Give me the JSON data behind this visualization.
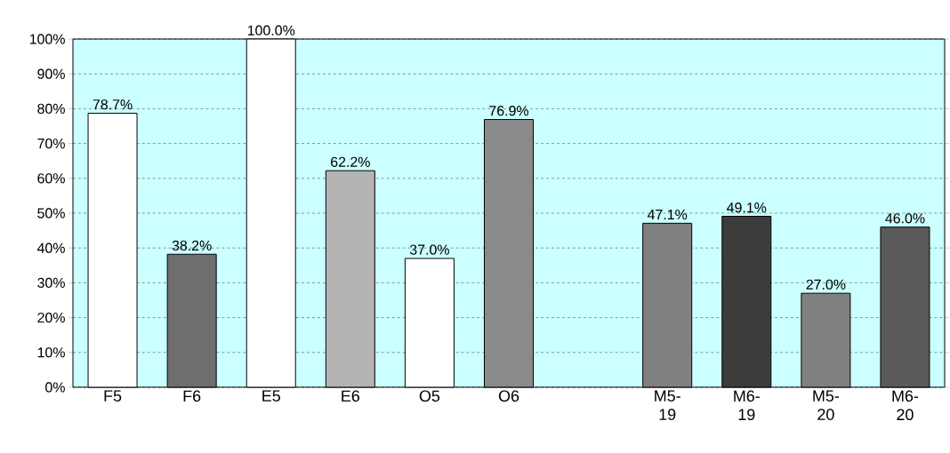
{
  "chart_data": {
    "type": "bar",
    "categories": [
      "F5",
      "F6",
      "E5",
      "E6",
      "O5",
      "O6",
      null,
      "M5-19",
      "M6-19",
      "M5-20",
      "M6-20"
    ],
    "values": [
      78.7,
      38.2,
      100.0,
      62.2,
      37.0,
      76.9,
      null,
      47.1,
      49.1,
      27.0,
      46.0
    ],
    "value_labels": [
      "78.7%",
      "38.2%",
      "100.0%",
      "62.2%",
      "37.0%",
      "76.9%",
      null,
      "47.1%",
      "49.1%",
      "27.0%",
      "46.0%"
    ],
    "colors": [
      "#ffffff",
      "#6e6e6e",
      "#ffffff",
      "#b4b4b4",
      "#ffffff",
      "#8a8a8a",
      null,
      "#808080",
      "#3c3c3c",
      "#808080",
      "#5a5a5a"
    ],
    "ylim": [
      0,
      100
    ],
    "yticks": [
      {
        "value": 0,
        "label": "0%"
      },
      {
        "value": 10,
        "label": "10%"
      },
      {
        "value": 20,
        "label": "20%"
      },
      {
        "value": 30,
        "label": "30%"
      },
      {
        "value": 40,
        "label": "40%"
      },
      {
        "value": 50,
        "label": "50%"
      },
      {
        "value": 60,
        "label": "60%"
      },
      {
        "value": 70,
        "label": "70%"
      },
      {
        "value": 80,
        "label": "80%"
      },
      {
        "value": 90,
        "label": "90%"
      },
      {
        "value": 100,
        "label": "100%"
      }
    ],
    "grid": "y"
  }
}
